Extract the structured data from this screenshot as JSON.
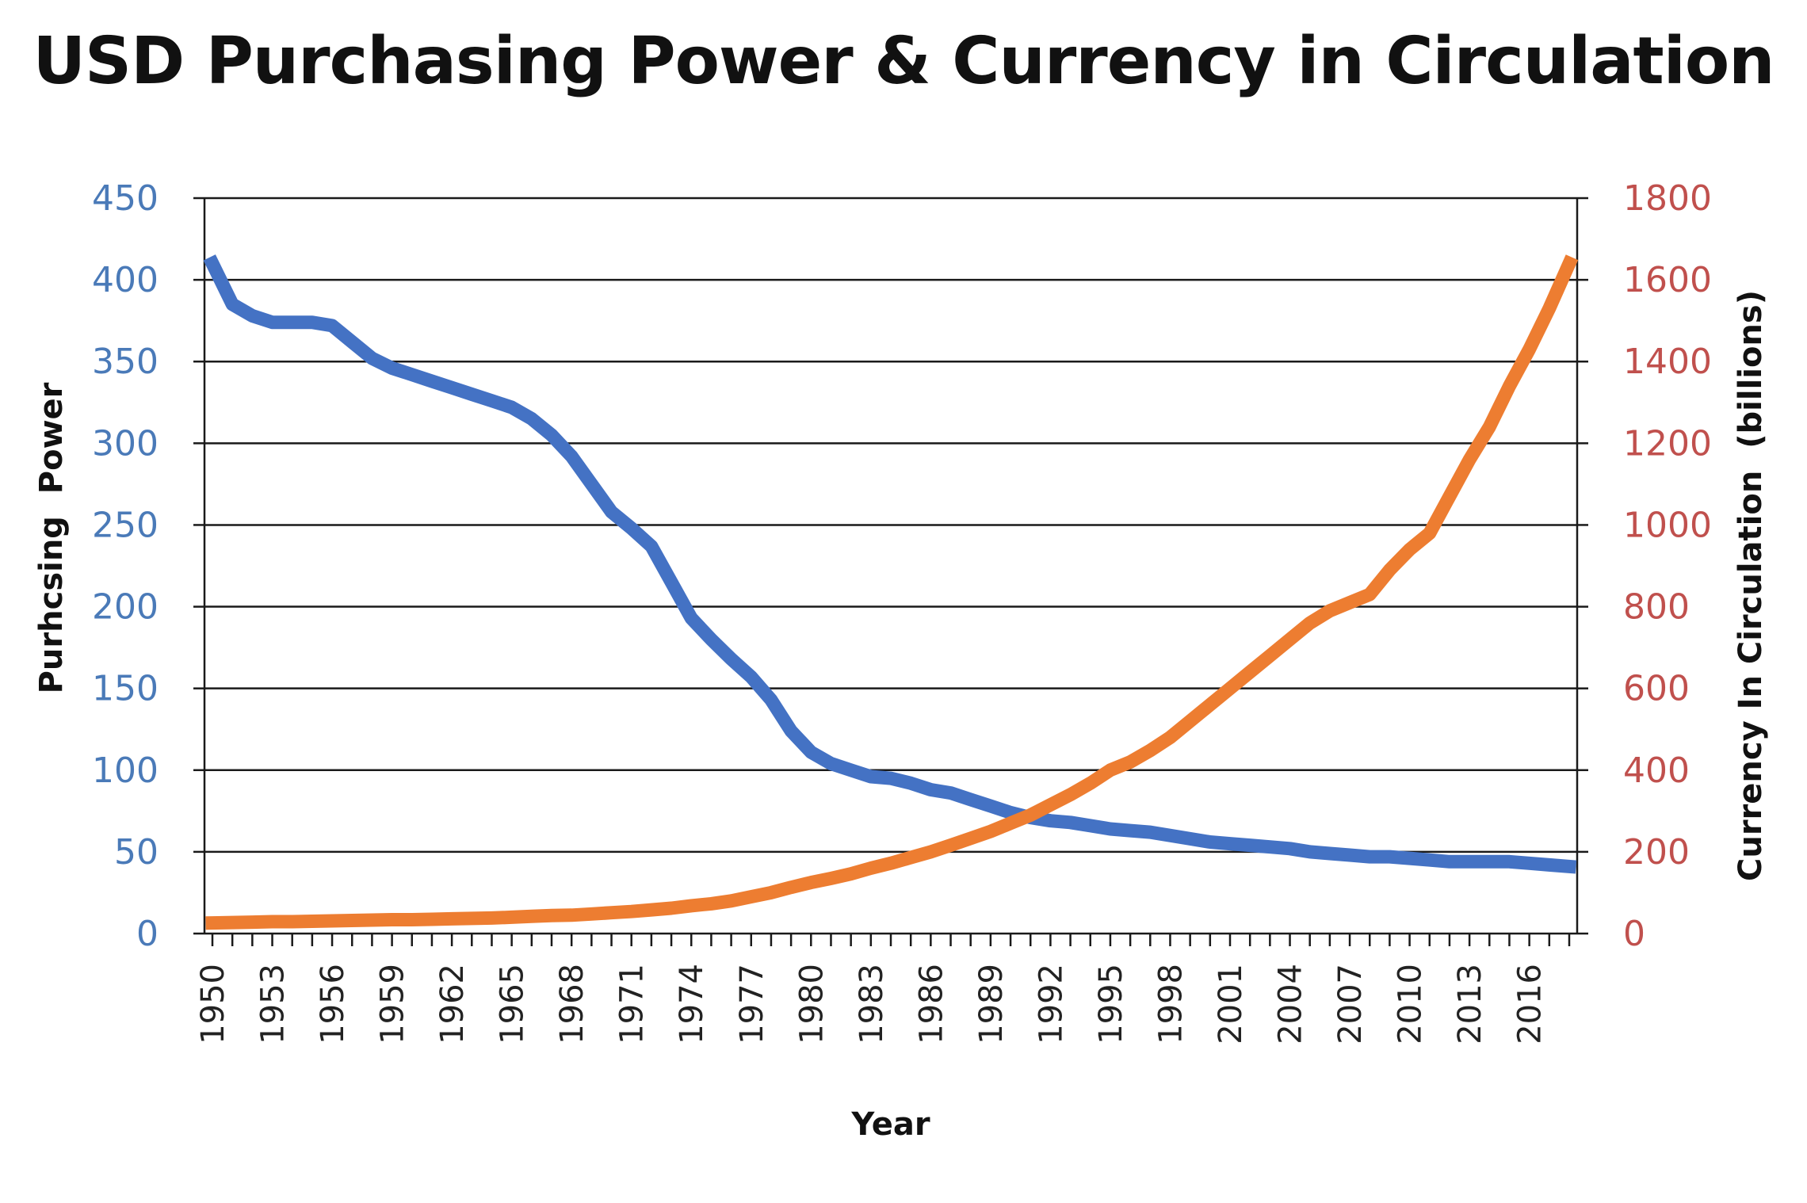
{
  "chart_data": {
    "type": "line",
    "title": "USD Purchasing Power & Currency in Circulation",
    "xlabel": "Year",
    "ylabel_left": "Purhcsing  Power",
    "ylabel_right": "Currency In Circulation  (billions)",
    "ylim_left": [
      0,
      450
    ],
    "ylim_right": [
      0,
      1800
    ],
    "xlim": [
      1950,
      2018
    ],
    "yticks_left": [
      "0",
      "50",
      "100",
      "150",
      "200",
      "250",
      "300",
      "350",
      "400",
      "450"
    ],
    "yticks_right": [
      "0",
      "200",
      "400",
      "600",
      "800",
      "1000",
      "1200",
      "1400",
      "1600",
      "1800"
    ],
    "xticks": [
      "1950",
      "1953",
      "1956",
      "1959",
      "1962",
      "1965",
      "1968",
      "1971",
      "1974",
      "1977",
      "1980",
      "1983",
      "1986",
      "1989",
      "1992",
      "1995",
      "1998",
      "2001",
      "2004",
      "2007",
      "2010",
      "2013",
      "2016"
    ],
    "grid": true,
    "colors": {
      "purchasing_power": "#4472c4",
      "currency": "#ed7d31",
      "left_axis": "#4a7ab8",
      "right_axis": "#c0504d"
    },
    "x": [
      1950,
      1951,
      1952,
      1953,
      1954,
      1955,
      1956,
      1957,
      1958,
      1959,
      1960,
      1961,
      1962,
      1963,
      1964,
      1965,
      1966,
      1967,
      1968,
      1969,
      1970,
      1971,
      1972,
      1973,
      1974,
      1975,
      1976,
      1977,
      1978,
      1979,
      1980,
      1981,
      1982,
      1983,
      1984,
      1985,
      1986,
      1987,
      1988,
      1989,
      1990,
      1991,
      1992,
      1993,
      1994,
      1995,
      1996,
      1997,
      1998,
      1999,
      2000,
      2001,
      2002,
      2003,
      2004,
      2005,
      2006,
      2007,
      2008,
      2009,
      2010,
      2011,
      2012,
      2013,
      2014,
      2015,
      2016,
      2017,
      2018
    ],
    "series": [
      {
        "axis": "left",
        "values": [
          410,
          385,
          378,
          374,
          374,
          374,
          372,
          362,
          352,
          346,
          342,
          338,
          334,
          330,
          326,
          322,
          315,
          305,
          292,
          275,
          258,
          248,
          237,
          215,
          193,
          180,
          168,
          157,
          143,
          124,
          111,
          104,
          100,
          96,
          95,
          92,
          88,
          86,
          82,
          78,
          74,
          71,
          69,
          68,
          66,
          64,
          63,
          62,
          60,
          58,
          56,
          55,
          54,
          53,
          52,
          50,
          49,
          48,
          47,
          47,
          46,
          45,
          44,
          44,
          44,
          44,
          43,
          42,
          41
        ]
      },
      {
        "axis": "right",
        "values": [
          26,
          27,
          28,
          29,
          29,
          30,
          31,
          32,
          33,
          34,
          34,
          35,
          36,
          37,
          38,
          40,
          42,
          44,
          45,
          48,
          51,
          54,
          58,
          62,
          68,
          73,
          80,
          90,
          100,
          113,
          125,
          135,
          146,
          160,
          172,
          186,
          200,
          216,
          233,
          250,
          270,
          290,
          315,
          340,
          368,
          400,
          420,
          448,
          480,
          520,
          560,
          600,
          640,
          680,
          720,
          760,
          790,
          810,
          830,
          890,
          940,
          980,
          1070,
          1160,
          1240,
          1340,
          1430,
          1530,
          1640
        ]
      }
    ]
  }
}
